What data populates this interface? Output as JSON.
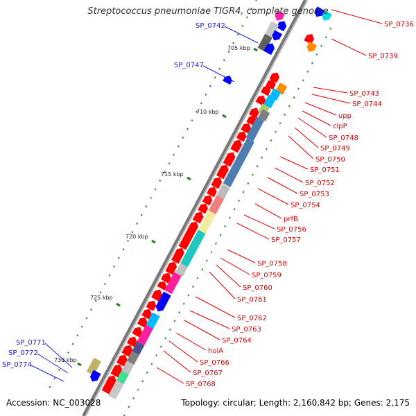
{
  "title": "Streptococcus pneumoniae TIGR4, complete genome",
  "footer": {
    "accession": "Accession: NC_003028",
    "topology": "Topology: circular; Length: 2,160,842 bp; Genes: 2,175"
  },
  "colors": {
    "forward_gene": "#ff0000",
    "reverse_gene": "#0000ff",
    "feature_label": "#d40000",
    "reverse_label": "#1a1ad6",
    "backbone": "#777777",
    "tick": "#2e8b2e"
  },
  "scale_labels": [
    "705 kbp",
    "710 kbp",
    "715 kbp",
    "720 kbp",
    "725 kbp",
    "730 kbp"
  ],
  "right_labels": [
    "SP_0736",
    "SP_0739",
    "SP_0743",
    "SP_0744",
    "upp",
    "clpP",
    "SP_0748",
    "SP_0749",
    "SP_0750",
    "SP_0751",
    "SP_0752",
    "SP_0753",
    "SP_0754",
    "prfB",
    "SP_0756",
    "SP_0757",
    "SP_0758",
    "SP_0759",
    "SP_0760",
    "SP_0761",
    "SP_0762",
    "SP_0763",
    "SP_0764",
    "holA",
    "SP_0766",
    "SP_0767",
    "SP_0768"
  ],
  "left_labels": [
    "SP_0742",
    "SP_0747",
    "SP_0771",
    "SP_0772",
    "SP_0774"
  ]
}
